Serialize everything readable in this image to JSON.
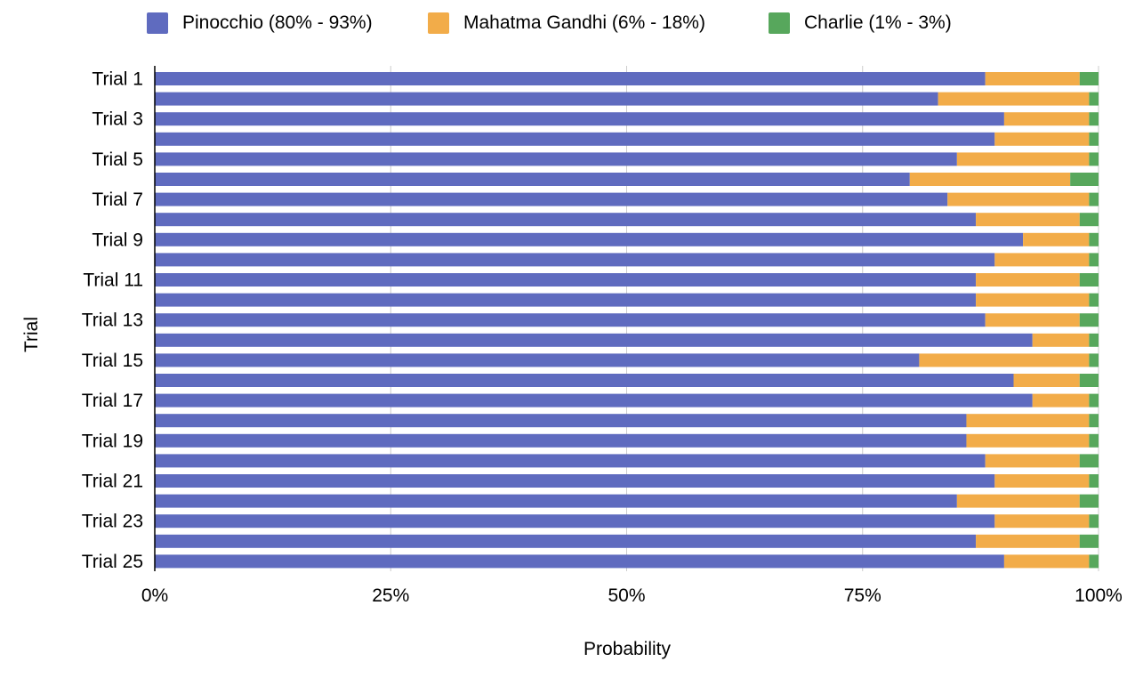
{
  "chart_data": {
    "type": "bar",
    "orientation": "horizontal",
    "stacked": true,
    "xlabel": "Probability",
    "ylabel": "Trial",
    "xlim": [
      0,
      100
    ],
    "x_ticks": [
      "0%",
      "25%",
      "50%",
      "75%",
      "100%"
    ],
    "grid": "vertical",
    "legend_position": "top",
    "categories": [
      "Trial 1",
      "Trial 2",
      "Trial 3",
      "Trial 4",
      "Trial 5",
      "Trial 6",
      "Trial 7",
      "Trial 8",
      "Trial 9",
      "Trial 10",
      "Trial 11",
      "Trial 12",
      "Trial 13",
      "Trial 14",
      "Trial 15",
      "Trial 16",
      "Trial 17",
      "Trial 18",
      "Trial 19",
      "Trial 20",
      "Trial 21",
      "Trial 22",
      "Trial 23",
      "Trial 24",
      "Trial 25"
    ],
    "shown_category_labels": [
      "Trial 1",
      "Trial 3",
      "Trial 5",
      "Trial 7",
      "Trial 9",
      "Trial 11",
      "Trial 13",
      "Trial 15",
      "Trial 17",
      "Trial 19",
      "Trial 21",
      "Trial 23",
      "Trial 25"
    ],
    "series": [
      {
        "name": "Pinocchio (80% - 93%)",
        "color": "#5f6bbf",
        "values": [
          88,
          83,
          90,
          89,
          85,
          80,
          84,
          87,
          92,
          89,
          87,
          87,
          88,
          93,
          81,
          91,
          93,
          86,
          86,
          88,
          89,
          85,
          89,
          87,
          90
        ]
      },
      {
        "name": "Mahatma Gandhi (6% - 18%)",
        "color": "#f2ac49",
        "values": [
          10,
          16,
          9,
          10,
          14,
          17,
          15,
          11,
          7,
          10,
          11,
          12,
          10,
          6,
          18,
          7,
          6,
          13,
          13,
          10,
          10,
          13,
          10,
          11,
          9
        ]
      },
      {
        "name": "Charlie (1% - 3%)",
        "color": "#57a75c",
        "values": [
          2,
          1,
          1,
          1,
          1,
          3,
          1,
          2,
          1,
          1,
          2,
          1,
          2,
          1,
          1,
          2,
          1,
          1,
          1,
          2,
          1,
          2,
          1,
          2,
          1
        ]
      }
    ]
  }
}
